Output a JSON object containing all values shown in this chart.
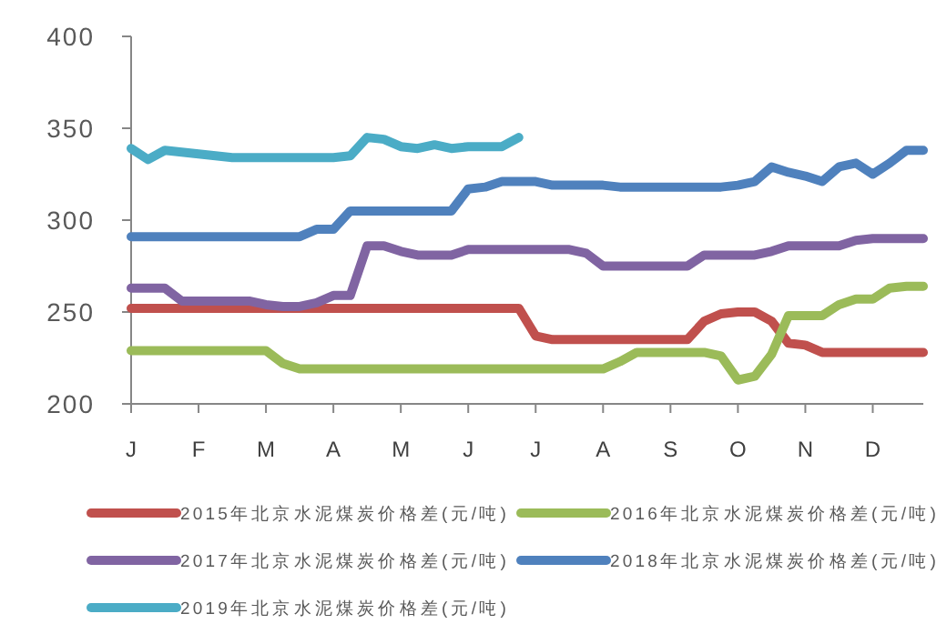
{
  "chart_data": {
    "type": "line",
    "legend": "bottom",
    "grid": false,
    "marker": "none",
    "line_style": "solid",
    "categories": [
      "J",
      null,
      null,
      null,
      "F",
      null,
      null,
      null,
      "M",
      null,
      null,
      null,
      "A",
      null,
      null,
      null,
      "M",
      null,
      null,
      null,
      "J",
      null,
      null,
      null,
      "J",
      null,
      null,
      null,
      "A",
      null,
      null,
      null,
      "S",
      null,
      null,
      null,
      "O",
      null,
      null,
      null,
      "N",
      null,
      null,
      null,
      "D",
      null,
      null,
      null
    ],
    "ylim": [
      200,
      400
    ],
    "yticks": [
      200,
      250,
      300,
      350,
      400
    ],
    "series": [
      {
        "name": "2015年北京水泥煤炭价格差(元/吨)",
        "color": "#c0504d",
        "values": [
          252,
          252,
          252,
          252,
          252,
          252,
          252,
          252,
          252,
          252,
          252,
          252,
          252,
          252,
          252,
          252,
          252,
          252,
          252,
          252,
          252,
          252,
          252,
          252,
          237,
          235,
          235,
          235,
          235,
          235,
          235,
          235,
          235,
          235,
          245,
          249,
          250,
          250,
          245,
          233,
          232,
          228,
          228,
          228,
          228,
          228,
          228,
          228
        ]
      },
      {
        "name": "2016年北京水泥煤炭价格差(元/吨)",
        "color": "#9bbb59",
        "values": [
          229,
          229,
          229,
          229,
          229,
          229,
          229,
          229,
          229,
          222,
          219,
          219,
          219,
          219,
          219,
          219,
          219,
          219,
          219,
          219,
          219,
          219,
          219,
          219,
          219,
          219,
          219,
          219,
          219,
          223,
          228,
          228,
          228,
          228,
          228,
          226,
          213,
          215,
          227,
          248,
          248,
          248,
          254,
          257,
          257,
          263,
          264,
          264
        ]
      },
      {
        "name": "2017年北京水泥煤炭价格差(元/吨)",
        "color": "#8064a2",
        "values": [
          263,
          263,
          263,
          256,
          256,
          256,
          256,
          256,
          254,
          253,
          253,
          255,
          259,
          259,
          286,
          286,
          283,
          281,
          281,
          281,
          284,
          284,
          284,
          284,
          284,
          284,
          284,
          282,
          275,
          275,
          275,
          275,
          275,
          275,
          281,
          281,
          281,
          281,
          283,
          286,
          286,
          286,
          286,
          289,
          290,
          290,
          290,
          290
        ]
      },
      {
        "name": "2018年北京水泥煤炭价格差(元/吨)",
        "color": "#4f81bd",
        "values": [
          291,
          291,
          291,
          291,
          291,
          291,
          291,
          291,
          291,
          291,
          291,
          295,
          295,
          305,
          305,
          305,
          305,
          305,
          305,
          305,
          317,
          318,
          321,
          321,
          321,
          319,
          319,
          319,
          319,
          318,
          318,
          318,
          318,
          318,
          318,
          318,
          319,
          321,
          329,
          326,
          324,
          321,
          329,
          331,
          325,
          331,
          338,
          338
        ]
      },
      {
        "name": "2019年北京水泥煤炭价格差(元/吨)",
        "color": "#4bacc6",
        "values": [
          339,
          333,
          338,
          337,
          336,
          335,
          334,
          334,
          334,
          334,
          334,
          334,
          334,
          335,
          345,
          344,
          340,
          339,
          341,
          339,
          340,
          340,
          340,
          345,
          null,
          null,
          null,
          null,
          null,
          null,
          null,
          null,
          null,
          null,
          null,
          null,
          null,
          null,
          null,
          null,
          null,
          null,
          null,
          null,
          null,
          null,
          null,
          null
        ]
      }
    ]
  }
}
